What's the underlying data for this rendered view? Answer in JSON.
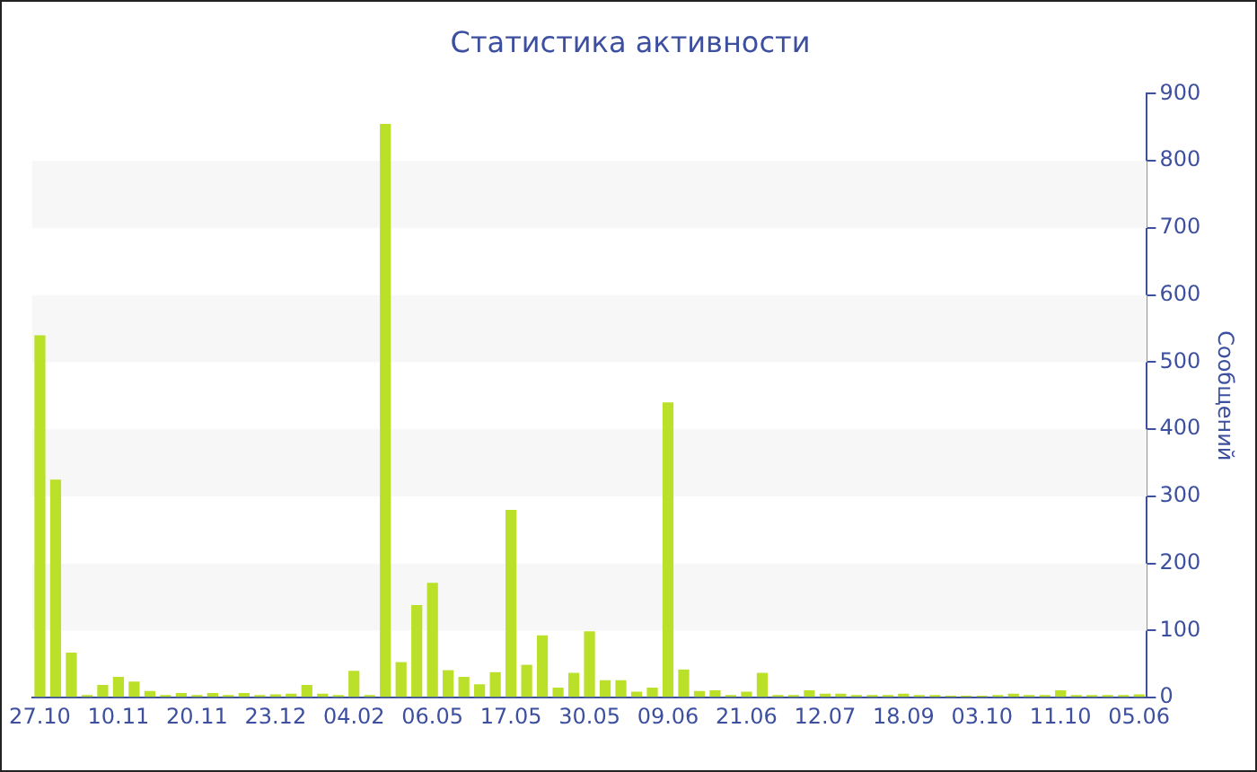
{
  "chart_data": {
    "type": "bar",
    "title": "Статистика активности",
    "ylabel": "Сообщений",
    "categories": [
      "27.10",
      null,
      null,
      null,
      null,
      "10.11",
      null,
      null,
      null,
      null,
      "20.11",
      null,
      null,
      null,
      null,
      "23.12",
      null,
      null,
      null,
      null,
      "04.02",
      null,
      null,
      null,
      null,
      "06.05",
      null,
      null,
      null,
      null,
      "17.05",
      null,
      null,
      null,
      null,
      "30.05",
      null,
      null,
      null,
      null,
      "09.06",
      null,
      null,
      null,
      null,
      "21.06",
      null,
      null,
      null,
      null,
      "12.07",
      null,
      null,
      null,
      null,
      "18.09",
      null,
      null,
      null,
      null,
      "03.10",
      null,
      null,
      null,
      null,
      "11.10",
      null,
      null,
      null,
      null,
      "05.06"
    ],
    "values": [
      540,
      325,
      67,
      4,
      19,
      31,
      24,
      10,
      4,
      7,
      4,
      7,
      4,
      7,
      4,
      5,
      6,
      19,
      6,
      4,
      40,
      4,
      855,
      53,
      138,
      171,
      41,
      31,
      20,
      38,
      280,
      49,
      93,
      15,
      37,
      99,
      26,
      26,
      9,
      15,
      440,
      42,
      10,
      11,
      4,
      9,
      37,
      4,
      4,
      11,
      6,
      6,
      4,
      4,
      4,
      6,
      4,
      4,
      3,
      3,
      3,
      4,
      6,
      4,
      4,
      11,
      4,
      4,
      4,
      4,
      5
    ],
    "color": "#bbe02a",
    "ylim": [
      0,
      900
    ],
    "yticks": [
      0,
      100,
      200,
      300,
      400,
      500,
      600,
      700,
      800,
      900
    ]
  }
}
